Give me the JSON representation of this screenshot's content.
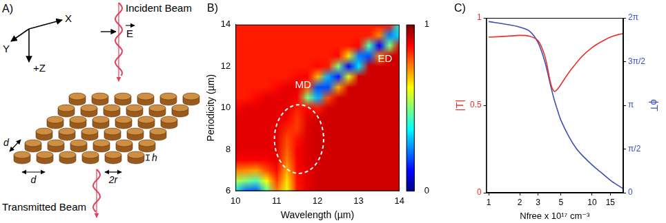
{
  "diagram": {
    "panel_label": "A)",
    "axes": {
      "x": "X",
      "y": "Y",
      "z": "+Z"
    },
    "incident": "Incident Beam",
    "field": "E",
    "transmitted": "Transmitted Beam",
    "period": "d",
    "height": "h",
    "diameter": "2r"
  },
  "chart_data": [
    {
      "type": "heatmap",
      "panel_label": "B)",
      "xlabel": "Wavelength (µm)",
      "ylabel": "Periodicity (µm)",
      "x": [
        10,
        10.25,
        10.5,
        10.75,
        11,
        11.25,
        11.5,
        11.75,
        12,
        12.25,
        12.5,
        12.75,
        13,
        13.25,
        13.5,
        13.75,
        14
      ],
      "y": [
        6,
        6.5,
        7,
        7.5,
        8,
        8.5,
        9,
        9.5,
        10,
        10.5,
        11,
        11.5,
        12,
        12.5,
        13,
        13.5,
        14
      ],
      "z": [
        [
          0.35,
          0.22,
          0.2,
          0.45,
          0.75,
          0.6,
          0.85,
          0.9,
          0.92,
          0.92,
          0.92,
          0.92,
          0.92,
          0.92,
          0.92,
          0.92,
          0.92
        ],
        [
          0.55,
          0.5,
          0.45,
          0.62,
          0.82,
          0.65,
          0.86,
          0.9,
          0.92,
          0.92,
          0.92,
          0.92,
          0.92,
          0.92,
          0.92,
          0.92,
          0.92
        ],
        [
          0.75,
          0.74,
          0.72,
          0.8,
          0.87,
          0.7,
          0.87,
          0.9,
          0.92,
          0.92,
          0.92,
          0.92,
          0.92,
          0.92,
          0.92,
          0.92,
          0.92
        ],
        [
          0.88,
          0.88,
          0.88,
          0.88,
          0.9,
          0.75,
          0.88,
          0.91,
          0.92,
          0.92,
          0.92,
          0.92,
          0.92,
          0.92,
          0.92,
          0.92,
          0.92
        ],
        [
          0.9,
          0.9,
          0.9,
          0.9,
          0.9,
          0.78,
          0.88,
          0.91,
          0.92,
          0.92,
          0.92,
          0.92,
          0.92,
          0.92,
          0.92,
          0.92,
          0.92
        ],
        [
          0.9,
          0.9,
          0.9,
          0.9,
          0.9,
          0.8,
          0.86,
          0.91,
          0.92,
          0.92,
          0.92,
          0.92,
          0.92,
          0.92,
          0.92,
          0.92,
          0.92
        ],
        [
          0.9,
          0.9,
          0.9,
          0.9,
          0.9,
          0.84,
          0.82,
          0.91,
          0.92,
          0.92,
          0.92,
          0.92,
          0.92,
          0.92,
          0.92,
          0.92,
          0.92
        ],
        [
          0.9,
          0.9,
          0.9,
          0.9,
          0.9,
          0.88,
          0.82,
          0.9,
          0.92,
          0.92,
          0.92,
          0.92,
          0.92,
          0.92,
          0.92,
          0.92,
          0.92
        ],
        [
          0.87,
          0.9,
          0.9,
          0.9,
          0.9,
          0.9,
          0.85,
          0.88,
          0.85,
          0.92,
          0.92,
          0.92,
          0.92,
          0.92,
          0.92,
          0.92,
          0.92
        ],
        [
          0.85,
          0.85,
          0.87,
          0.9,
          0.9,
          0.9,
          0.88,
          0.5,
          0.3,
          0.8,
          0.92,
          0.92,
          0.92,
          0.92,
          0.92,
          0.92,
          0.92
        ],
        [
          0.85,
          0.85,
          0.85,
          0.85,
          0.87,
          0.9,
          0.9,
          0.8,
          0.2,
          0.2,
          0.7,
          0.92,
          0.92,
          0.92,
          0.92,
          0.92,
          0.92
        ],
        [
          0.85,
          0.85,
          0.85,
          0.85,
          0.85,
          0.85,
          0.87,
          0.88,
          0.7,
          0.3,
          0.15,
          0.6,
          0.92,
          0.92,
          0.92,
          0.92,
          0.92
        ],
        [
          0.85,
          0.85,
          0.85,
          0.85,
          0.85,
          0.85,
          0.85,
          0.85,
          0.87,
          0.85,
          0.5,
          0.12,
          0.35,
          0.92,
          0.92,
          0.92,
          0.92
        ],
        [
          0.85,
          0.85,
          0.85,
          0.85,
          0.85,
          0.85,
          0.85,
          0.85,
          0.85,
          0.85,
          0.87,
          0.65,
          0.25,
          0.2,
          0.75,
          0.92,
          0.92
        ],
        [
          0.85,
          0.85,
          0.85,
          0.85,
          0.85,
          0.85,
          0.85,
          0.85,
          0.85,
          0.85,
          0.85,
          0.85,
          0.87,
          0.45,
          0.12,
          0.5,
          0.92
        ],
        [
          0.85,
          0.85,
          0.85,
          0.85,
          0.85,
          0.85,
          0.85,
          0.85,
          0.85,
          0.85,
          0.85,
          0.85,
          0.85,
          0.85,
          0.75,
          0.25,
          0.35
        ],
        [
          0.85,
          0.85,
          0.85,
          0.85,
          0.85,
          0.85,
          0.85,
          0.85,
          0.85,
          0.85,
          0.85,
          0.85,
          0.85,
          0.85,
          0.85,
          0.85,
          0.4
        ]
      ],
      "xlim": [
        10,
        14
      ],
      "xticks": [
        10,
        11,
        12,
        13,
        14
      ],
      "ylim": [
        6,
        14
      ],
      "yticks": [
        6,
        8,
        10,
        12,
        14
      ],
      "zlim": [
        0,
        1
      ],
      "zticks": [
        0,
        1
      ],
      "annotations": [
        {
          "text": "MD",
          "x": 11.65,
          "y": 11.1
        },
        {
          "text": "ED",
          "x": 13.65,
          "y": 12.35
        }
      ],
      "grid": false
    },
    {
      "type": "line",
      "panel_label": "C)",
      "xlabel": "Nfree x 10¹⁷ cm⁻³",
      "ylabel": "|T|",
      "y2label": "ϕT",
      "log": "x",
      "x": [
        1,
        1.5,
        2,
        2.5,
        3,
        3.5,
        4,
        4.3,
        4.6,
        5,
        6,
        7,
        8,
        10,
        12,
        15,
        18,
        20
      ],
      "series": [
        {
          "color": "#e8322b",
          "values": [
            0.89,
            0.895,
            0.9,
            0.895,
            0.87,
            0.78,
            0.62,
            0.58,
            0.59,
            0.62,
            0.69,
            0.74,
            0.78,
            0.83,
            0.86,
            0.89,
            0.905,
            0.91
          ]
        },
        {
          "color": "#3b4fb8",
          "axis": "y2",
          "values": [
            6.15,
            6.05,
            5.95,
            5.8,
            5.4,
            4.7,
            3.8,
            3.35,
            3.0,
            2.6,
            2.0,
            1.6,
            1.35,
            1.0,
            0.75,
            0.45,
            0.25,
            0.15
          ]
        }
      ],
      "xlim": [
        0.95,
        20
      ],
      "xticks": [
        1,
        2,
        3,
        5,
        10,
        15
      ],
      "ylim": [
        0,
        1
      ],
      "yticks": [
        0,
        0.5,
        1
      ],
      "y2lim": [
        0,
        6.2832
      ],
      "y2ticks": [
        0,
        {
          "value": 1.5708,
          "label": "π/2"
        },
        {
          "value": 3.1416,
          "label": "π"
        },
        {
          "value": 4.7124,
          "label": "3π/2"
        },
        {
          "value": 6.2832,
          "label": "2π"
        }
      ],
      "grid": false
    }
  ]
}
